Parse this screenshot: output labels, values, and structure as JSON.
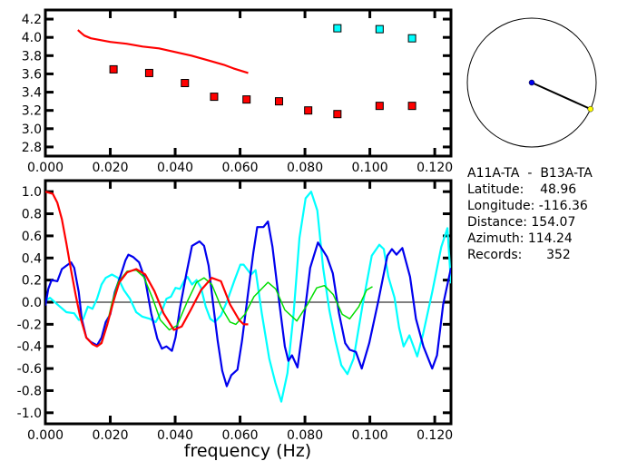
{
  "chart_data": [
    {
      "type": "scatter",
      "xlim": [
        0,
        0.125
      ],
      "ylim": [
        2.7,
        4.3
      ],
      "xticks": [
        "0.000",
        "0.020",
        "0.040",
        "0.060",
        "0.080",
        "0.100",
        "0.120"
      ],
      "yticks": [
        "2.8",
        "3.0",
        "3.2",
        "3.4",
        "3.6",
        "3.8",
        "4.0",
        "4.2"
      ],
      "grid": false,
      "series": [
        {
          "kind": "line",
          "color": "#ff0000",
          "points": [
            [
              0.01,
              4.08
            ],
            [
              0.011,
              4.05
            ],
            [
              0.012,
              4.02
            ],
            [
              0.014,
              3.99
            ],
            [
              0.017,
              3.97
            ],
            [
              0.02,
              3.95
            ],
            [
              0.025,
              3.93
            ],
            [
              0.03,
              3.9
            ],
            [
              0.035,
              3.88
            ],
            [
              0.04,
              3.84
            ],
            [
              0.045,
              3.8
            ],
            [
              0.05,
              3.75
            ],
            [
              0.055,
              3.7
            ],
            [
              0.058,
              3.66
            ],
            [
              0.0625,
              3.61
            ]
          ]
        },
        {
          "kind": "markers",
          "color": "#ff0000",
          "points": [
            [
              0.021,
              3.65
            ],
            [
              0.032,
              3.61
            ],
            [
              0.043,
              3.5
            ],
            [
              0.052,
              3.35
            ],
            [
              0.062,
              3.32
            ],
            [
              0.072,
              3.3
            ],
            [
              0.081,
              3.2
            ],
            [
              0.09,
              3.16
            ],
            [
              0.103,
              3.25
            ],
            [
              0.113,
              3.25
            ]
          ]
        },
        {
          "kind": "markers",
          "color": "#00ffff",
          "points": [
            [
              0.09,
              4.1
            ],
            [
              0.103,
              4.09
            ],
            [
              0.113,
              3.99
            ]
          ]
        }
      ]
    },
    {
      "type": "line",
      "xlabel": "frequency (Hz)",
      "xlim": [
        0,
        0.125
      ],
      "ylim": [
        -1.1,
        1.1
      ],
      "xticks": [
        "0.000",
        "0.020",
        "0.040",
        "0.060",
        "0.080",
        "0.100",
        "0.120"
      ],
      "yticks": [
        "-1.0",
        "-0.8",
        "-0.6",
        "-0.4",
        "-0.2",
        "0.0",
        "0.2",
        "0.4",
        "0.6",
        "0.8",
        "1.0"
      ],
      "zero_line": true,
      "grid": false,
      "series": [
        {
          "color": "#00ffff",
          "points": [
            [
              0,
              0.01
            ],
            [
              0.0014,
              0.04
            ],
            [
              0.0037,
              -0.02
            ],
            [
              0.0065,
              -0.09
            ],
            [
              0.0089,
              -0.1
            ],
            [
              0.0103,
              -0.16
            ],
            [
              0.0117,
              -0.15
            ],
            [
              0.0131,
              -0.04
            ],
            [
              0.0145,
              -0.06
            ],
            [
              0.0159,
              0.03
            ],
            [
              0.0173,
              0.16
            ],
            [
              0.0186,
              0.22
            ],
            [
              0.0205,
              0.25
            ],
            [
              0.0224,
              0.22
            ],
            [
              0.0242,
              0.11
            ],
            [
              0.0261,
              0.03
            ],
            [
              0.028,
              -0.09
            ],
            [
              0.0298,
              -0.13
            ],
            [
              0.0322,
              -0.15
            ],
            [
              0.034,
              -0.18
            ],
            [
              0.0359,
              -0.08
            ],
            [
              0.0373,
              0.03
            ],
            [
              0.0387,
              0.05
            ],
            [
              0.0401,
              0.13
            ],
            [
              0.0415,
              0.12
            ],
            [
              0.0429,
              0.2
            ],
            [
              0.0438,
              0.23
            ],
            [
              0.0452,
              0.16
            ],
            [
              0.0466,
              0.2
            ],
            [
              0.048,
              0.13
            ],
            [
              0.0494,
              -0.04
            ],
            [
              0.0508,
              -0.15
            ],
            [
              0.0522,
              -0.18
            ],
            [
              0.0541,
              -0.12
            ],
            [
              0.056,
              0.01
            ],
            [
              0.0583,
              0.2
            ],
            [
              0.0601,
              0.34
            ],
            [
              0.0611,
              0.34
            ],
            [
              0.0634,
              0.25
            ],
            [
              0.0648,
              0.29
            ],
            [
              0.0667,
              -0.1
            ],
            [
              0.069,
              -0.51
            ],
            [
              0.0709,
              -0.73
            ],
            [
              0.0727,
              -0.9
            ],
            [
              0.0746,
              -0.64
            ],
            [
              0.0765,
              -0.1
            ],
            [
              0.0783,
              0.58
            ],
            [
              0.0802,
              0.94
            ],
            [
              0.0819,
              1.0
            ],
            [
              0.0838,
              0.83
            ],
            [
              0.0856,
              0.31
            ],
            [
              0.0875,
              -0.07
            ],
            [
              0.0894,
              -0.35
            ],
            [
              0.0912,
              -0.57
            ],
            [
              0.0931,
              -0.65
            ],
            [
              0.095,
              -0.51
            ],
            [
              0.0978,
              -0.02
            ],
            [
              0.1006,
              0.42
            ],
            [
              0.1029,
              0.52
            ],
            [
              0.1043,
              0.48
            ],
            [
              0.1057,
              0.23
            ],
            [
              0.1076,
              0.04
            ],
            [
              0.109,
              -0.23
            ],
            [
              0.1104,
              -0.4
            ],
            [
              0.1122,
              -0.3
            ],
            [
              0.1146,
              -0.49
            ],
            [
              0.1164,
              -0.29
            ],
            [
              0.1192,
              0.09
            ],
            [
              0.122,
              0.5
            ],
            [
              0.1239,
              0.67
            ],
            [
              0.125,
              0.17
            ]
          ]
        },
        {
          "color": "#0000ee",
          "points": [
            [
              0,
              -0.03
            ],
            [
              0.0009,
              0.12
            ],
            [
              0.0019,
              0.2
            ],
            [
              0.0037,
              0.19
            ],
            [
              0.0051,
              0.3
            ],
            [
              0.0065,
              0.33
            ],
            [
              0.0079,
              0.36
            ],
            [
              0.0089,
              0.31
            ],
            [
              0.0103,
              0.09
            ],
            [
              0.0112,
              -0.15
            ],
            [
              0.0126,
              -0.32
            ],
            [
              0.014,
              -0.36
            ],
            [
              0.0159,
              -0.39
            ],
            [
              0.0173,
              -0.32
            ],
            [
              0.0186,
              -0.18
            ],
            [
              0.02,
              -0.11
            ],
            [
              0.0214,
              0.09
            ],
            [
              0.0233,
              0.25
            ],
            [
              0.0247,
              0.38
            ],
            [
              0.0256,
              0.43
            ],
            [
              0.027,
              0.41
            ],
            [
              0.0289,
              0.36
            ],
            [
              0.0308,
              0.2
            ],
            [
              0.0326,
              -0.1
            ],
            [
              0.0345,
              -0.33
            ],
            [
              0.0359,
              -0.42
            ],
            [
              0.0373,
              -0.4
            ],
            [
              0.039,
              -0.44
            ],
            [
              0.0401,
              -0.32
            ],
            [
              0.0415,
              -0.05
            ],
            [
              0.0434,
              0.25
            ],
            [
              0.0452,
              0.51
            ],
            [
              0.0475,
              0.55
            ],
            [
              0.0489,
              0.51
            ],
            [
              0.0503,
              0.33
            ],
            [
              0.0517,
              -0.02
            ],
            [
              0.0531,
              -0.35
            ],
            [
              0.0545,
              -0.62
            ],
            [
              0.0559,
              -0.76
            ],
            [
              0.0573,
              -0.66
            ],
            [
              0.0592,
              -0.61
            ],
            [
              0.0606,
              -0.35
            ],
            [
              0.0625,
              0.09
            ],
            [
              0.0641,
              0.45
            ],
            [
              0.0653,
              0.68
            ],
            [
              0.0672,
              0.68
            ],
            [
              0.0686,
              0.73
            ],
            [
              0.07,
              0.5
            ],
            [
              0.0719,
              0.04
            ],
            [
              0.0738,
              -0.4
            ],
            [
              0.0749,
              -0.53
            ],
            [
              0.076,
              -0.48
            ],
            [
              0.0777,
              -0.59
            ],
            [
              0.0793,
              -0.24
            ],
            [
              0.0816,
              0.31
            ],
            [
              0.084,
              0.54
            ],
            [
              0.0868,
              0.41
            ],
            [
              0.0886,
              0.26
            ],
            [
              0.0905,
              -0.1
            ],
            [
              0.0924,
              -0.37
            ],
            [
              0.0938,
              -0.43
            ],
            [
              0.0957,
              -0.45
            ],
            [
              0.0975,
              -0.6
            ],
            [
              0.0998,
              -0.37
            ],
            [
              0.1026,
              0.01
            ],
            [
              0.1054,
              0.42
            ],
            [
              0.1068,
              0.48
            ],
            [
              0.1082,
              0.43
            ],
            [
              0.11,
              0.49
            ],
            [
              0.1124,
              0.23
            ],
            [
              0.1142,
              -0.15
            ],
            [
              0.1165,
              -0.4
            ],
            [
              0.1192,
              -0.6
            ],
            [
              0.1207,
              -0.48
            ],
            [
              0.1226,
              -0.02
            ],
            [
              0.125,
              0.31
            ]
          ]
        },
        {
          "color": "#00dd00",
          "points": [
            [
              0.0107,
              -0.13
            ],
            [
              0.0126,
              -0.32
            ],
            [
              0.0145,
              -0.38
            ],
            [
              0.0159,
              -0.4
            ],
            [
              0.0173,
              -0.36
            ],
            [
              0.019,
              -0.2
            ],
            [
              0.0205,
              -0.01
            ],
            [
              0.0224,
              0.18
            ],
            [
              0.0252,
              0.28
            ],
            [
              0.028,
              0.29
            ],
            [
              0.0303,
              0.23
            ],
            [
              0.0331,
              0.03
            ],
            [
              0.0354,
              -0.16
            ],
            [
              0.0382,
              -0.25
            ],
            [
              0.0406,
              -0.21
            ],
            [
              0.0438,
              0.01
            ],
            [
              0.0466,
              0.18
            ],
            [
              0.0489,
              0.22
            ],
            [
              0.0513,
              0.16
            ],
            [
              0.0541,
              -0.04
            ],
            [
              0.0569,
              -0.18
            ],
            [
              0.0587,
              -0.2
            ],
            [
              0.0615,
              -0.11
            ],
            [
              0.0643,
              0.05
            ],
            [
              0.0686,
              0.18
            ],
            [
              0.071,
              0.12
            ],
            [
              0.0738,
              -0.07
            ],
            [
              0.0775,
              -0.17
            ],
            [
              0.0808,
              -0.02
            ],
            [
              0.0836,
              0.13
            ],
            [
              0.086,
              0.15
            ],
            [
              0.0887,
              0.07
            ],
            [
              0.0915,
              -0.11
            ],
            [
              0.0938,
              -0.15
            ],
            [
              0.0966,
              -0.04
            ],
            [
              0.099,
              0.11
            ],
            [
              0.1008,
              0.14
            ]
          ]
        },
        {
          "color": "#ff0000",
          "points": [
            [
              0,
              1.0
            ],
            [
              0.0023,
              0.98
            ],
            [
              0.0037,
              0.9
            ],
            [
              0.0051,
              0.75
            ],
            [
              0.0065,
              0.53
            ],
            [
              0.0079,
              0.29
            ],
            [
              0.0093,
              0.07
            ],
            [
              0.0107,
              -0.13
            ],
            [
              0.0126,
              -0.32
            ],
            [
              0.0145,
              -0.38
            ],
            [
              0.0159,
              -0.4
            ],
            [
              0.0173,
              -0.37
            ],
            [
              0.0191,
              -0.2
            ],
            [
              0.021,
              0.01
            ],
            [
              0.0228,
              0.18
            ],
            [
              0.0252,
              0.27
            ],
            [
              0.028,
              0.3
            ],
            [
              0.0308,
              0.25
            ],
            [
              0.0336,
              0.1
            ],
            [
              0.0364,
              -0.1
            ],
            [
              0.0396,
              -0.25
            ],
            [
              0.042,
              -0.22
            ],
            [
              0.0448,
              -0.07
            ],
            [
              0.048,
              0.11
            ],
            [
              0.0513,
              0.22
            ],
            [
              0.0541,
              0.19
            ],
            [
              0.0569,
              -0.02
            ],
            [
              0.0597,
              -0.16
            ],
            [
              0.0611,
              -0.2
            ],
            [
              0.0625,
              -0.2
            ]
          ]
        }
      ]
    }
  ],
  "azimuth_dial": {
    "azimuth": 114.24,
    "center_color": "#0000ee",
    "end_color": "#ffff00"
  },
  "info": {
    "pair": "A11A-TA  -  B13A-TA",
    "latitude": "Latitude:    48.96",
    "longitude": "Longitude: -116.36",
    "distance": "Distance: 154.07",
    "azimuth": "Azimuth: 114.24",
    "records": "Records:      352"
  }
}
